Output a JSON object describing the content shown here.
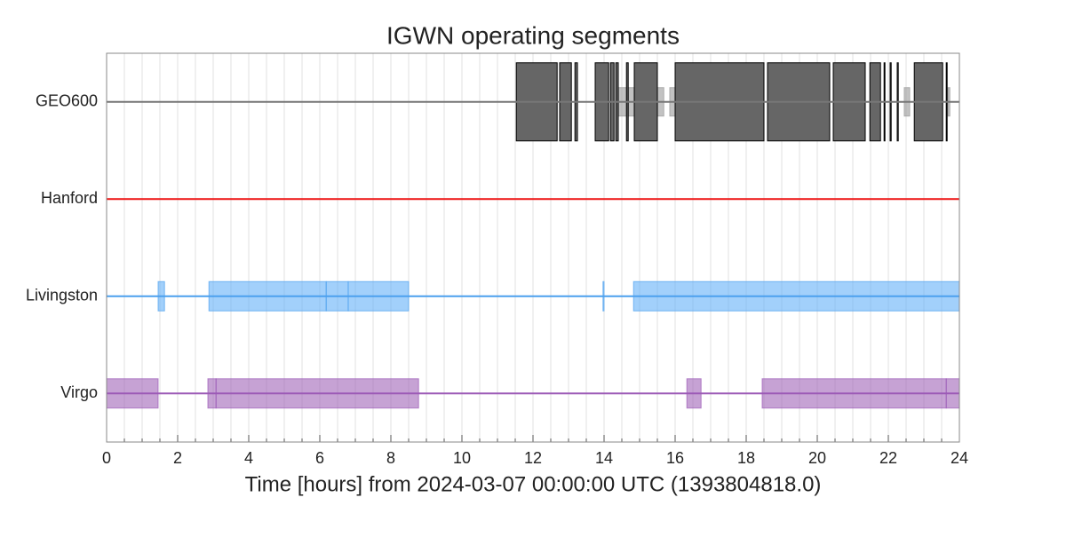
{
  "chart_data": {
    "type": "segments",
    "title": "IGWN operating segments",
    "xlabel": "Time [hours] from 2024-03-07 00:00:00 UTC (1393804818.0)",
    "xlim": [
      0,
      24
    ],
    "xticks": [
      0,
      2,
      4,
      6,
      8,
      10,
      12,
      14,
      16,
      18,
      20,
      22,
      24
    ],
    "xminor_step": 0.5,
    "grid": true,
    "rows": [
      {
        "name": "GEO600",
        "color": "#666666",
        "line_color": "#777777",
        "edge": "#000000",
        "tall": true,
        "segments": [
          [
            11.53,
            12.68
          ],
          [
            12.75,
            13.08
          ],
          [
            13.18,
            13.25
          ],
          [
            13.75,
            14.13
          ],
          [
            14.18,
            14.28
          ],
          [
            14.33,
            14.4
          ],
          [
            14.63,
            14.68
          ],
          [
            14.85,
            15.5
          ],
          [
            16.0,
            18.5
          ],
          [
            18.6,
            20.35
          ],
          [
            20.45,
            21.35
          ],
          [
            21.48,
            21.78
          ],
          [
            21.88,
            21.9
          ],
          [
            22.05,
            22.08
          ],
          [
            22.25,
            22.28
          ],
          [
            22.73,
            23.53
          ],
          [
            23.63,
            23.65
          ]
        ],
        "minor_segments": [
          [
            14.38,
            15.68
          ],
          [
            15.85,
            16.0
          ],
          [
            22.45,
            22.6
          ],
          [
            23.68,
            23.73
          ]
        ]
      },
      {
        "name": "Hanford",
        "color": "#ee1111",
        "line_color": "#ee1111",
        "segments": []
      },
      {
        "name": "Livingston",
        "color": "#64b0f8",
        "line_color": "#4ca0ee",
        "segments": [
          [
            1.45,
            1.63
          ],
          [
            2.88,
            6.18
          ],
          [
            6.18,
            6.8
          ],
          [
            6.8,
            8.5
          ],
          [
            13.97,
            14.0
          ],
          [
            14.83,
            24.0
          ]
        ]
      },
      {
        "name": "Virgo",
        "color": "#a064b8",
        "line_color": "#9b59b6",
        "segments": [
          [
            0,
            1.45
          ],
          [
            2.85,
            3.08
          ],
          [
            3.08,
            8.78
          ],
          [
            16.33,
            16.73
          ],
          [
            18.45,
            23.63
          ],
          [
            23.63,
            24.0
          ]
        ]
      }
    ]
  }
}
